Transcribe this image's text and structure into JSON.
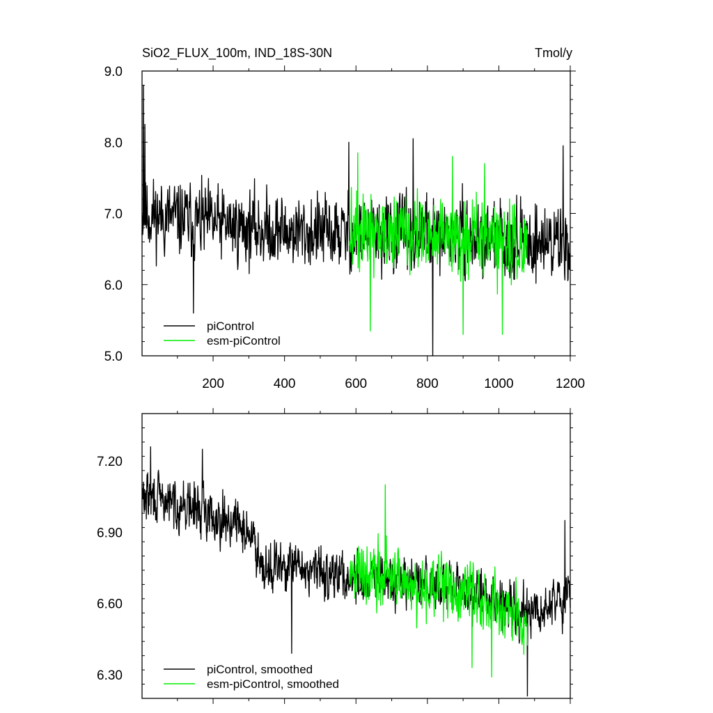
{
  "figure": {
    "title_left": "SiO2_FLUX_100m, IND_18S-30N",
    "title_right": "Tmol/y"
  },
  "colors": {
    "piControl": "#000000",
    "esm_piControl": "#00ee00"
  },
  "chart_data": [
    {
      "type": "line",
      "title": "SiO2_FLUX_100m, IND_18S-30N",
      "units": "Tmol/y",
      "xlim": [
        1,
        1200
      ],
      "ylim": [
        5.0,
        9.0
      ],
      "x_ticks": [
        200,
        400,
        600,
        800,
        1000,
        1200
      ],
      "y_ticks": [
        "5.0",
        "6.0",
        "7.0",
        "8.0",
        "9.0"
      ],
      "grid": false,
      "legend": "bottom-left",
      "series": [
        {
          "name": "piControl",
          "x_range": [
            1,
            1200
          ],
          "mean_trend": [
            [
              1,
              7.0
            ],
            [
              200,
              6.85
            ],
            [
              400,
              6.75
            ],
            [
              600,
              6.7
            ],
            [
              800,
              6.7
            ],
            [
              1000,
              6.62
            ],
            [
              1200,
              6.6
            ]
          ],
          "notable_points": [
            [
              5,
              8.8
            ],
            [
              9,
              8.25
            ],
            [
              145,
              5.6
            ],
            [
              580,
              8.0
            ],
            [
              760,
              8.05
            ],
            [
              815,
              5.0
            ],
            [
              1180,
              7.95
            ]
          ]
        },
        {
          "name": "esm-piControl",
          "x_range": [
            581,
            1080
          ],
          "mean_trend": [
            [
              581,
              6.75
            ],
            [
              700,
              6.7
            ],
            [
              800,
              6.65
            ],
            [
              900,
              6.65
            ],
            [
              1000,
              6.6
            ],
            [
              1080,
              6.55
            ]
          ],
          "notable_points": [
            [
              605,
              7.85
            ],
            [
              640,
              5.35
            ],
            [
              870,
              7.8
            ],
            [
              900,
              5.3
            ],
            [
              960,
              7.7
            ],
            [
              1010,
              5.3
            ]
          ]
        }
      ]
    },
    {
      "type": "line",
      "xlim": [
        1,
        1200
      ],
      "ylim": [
        6.2,
        7.4
      ],
      "x_ticks": [
        200,
        400,
        600,
        800,
        1000,
        1200
      ],
      "y_ticks": [
        "6.30",
        "6.60",
        "6.90",
        "7.20"
      ],
      "grid": false,
      "legend": "bottom-left",
      "series": [
        {
          "name": "piControl, smoothed",
          "x_range": [
            1,
            1200
          ],
          "mean_trend": [
            [
              1,
              7.05
            ],
            [
              150,
              7.0
            ],
            [
              250,
              6.95
            ],
            [
              300,
              6.9
            ],
            [
              350,
              6.75
            ],
            [
              450,
              6.75
            ],
            [
              600,
              6.7
            ],
            [
              800,
              6.68
            ],
            [
              1000,
              6.62
            ],
            [
              1100,
              6.55
            ],
            [
              1200,
              6.65
            ]
          ],
          "notable_points": [
            [
              25,
              7.26
            ],
            [
              170,
              7.25
            ],
            [
              420,
              6.39
            ],
            [
              1080,
              6.21
            ],
            [
              1185,
              6.95
            ]
          ]
        },
        {
          "name": "esm-piControl, smoothed",
          "x_range": [
            581,
            1080
          ],
          "mean_trend": [
            [
              581,
              6.72
            ],
            [
              700,
              6.72
            ],
            [
              800,
              6.66
            ],
            [
              900,
              6.65
            ],
            [
              1000,
              6.6
            ],
            [
              1080,
              6.5
            ]
          ],
          "notable_points": [
            [
              682,
              7.1
            ],
            [
              925,
              6.33
            ],
            [
              980,
              6.29
            ]
          ]
        }
      ]
    }
  ]
}
